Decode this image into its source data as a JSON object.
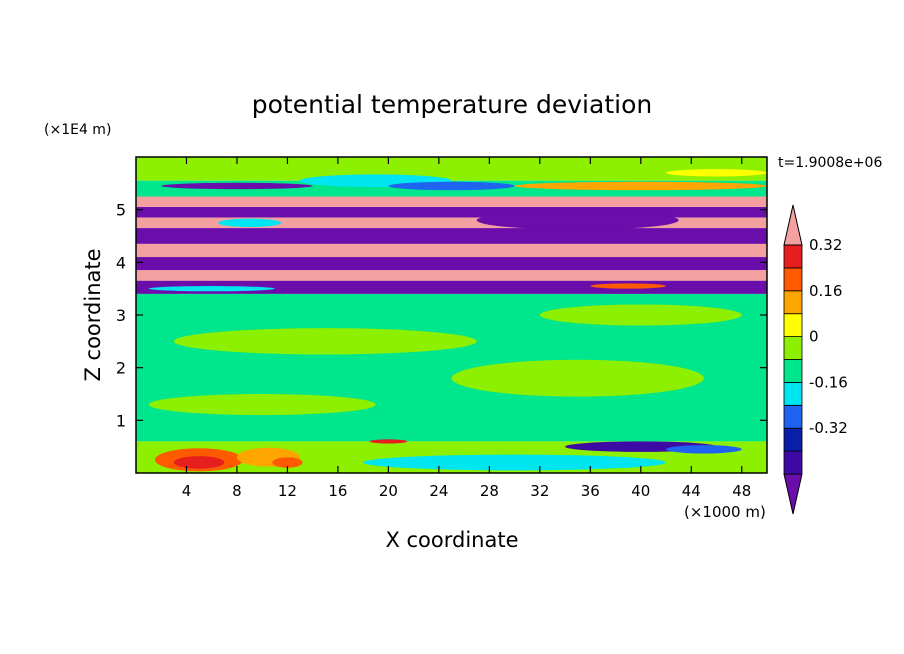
{
  "chart_data": {
    "type": "heatmap",
    "title": "potential temperature deviation",
    "xlabel": "X coordinate",
    "ylabel": "Z coordinate",
    "x_unit": "(×1000 m)",
    "y_unit": "(×1E4 m)",
    "time_label": "t=1.9008e+06",
    "xlim": [
      0,
      50
    ],
    "ylim": [
      0,
      6
    ],
    "x_ticks": [
      "4",
      "8",
      "12",
      "16",
      "20",
      "24",
      "28",
      "32",
      "36",
      "40",
      "44",
      "48"
    ],
    "y_ticks": [
      "1",
      "2",
      "3",
      "4",
      "5"
    ],
    "colorbar": {
      "colors": [
        "#6a0dab",
        "#3d0aa5",
        "#0a1ea8",
        "#1e64f0",
        "#00e6f0",
        "#00e68c",
        "#8cf000",
        "#ffff00",
        "#ffa500",
        "#ff5a00",
        "#e61e1e",
        "#f5a0a0"
      ],
      "tick_labels": [
        "-0.32",
        "-0.16",
        "0",
        "0.16",
        "0.32"
      ],
      "tick_values": [
        -0.32,
        -0.16,
        0,
        0.16,
        0.32
      ],
      "level_min": -0.48,
      "level_step": 0.08
    },
    "bands": [
      {
        "z0": 5.55,
        "z1": 6.0,
        "color": "#8cf000"
      },
      {
        "z0": 5.25,
        "z1": 5.55,
        "color": "#00e68c"
      },
      {
        "z0": 5.05,
        "z1": 5.25,
        "color": "#f5a0a0"
      },
      {
        "z0": 4.85,
        "z1": 5.05,
        "color": "#6a0dab"
      },
      {
        "z0": 4.65,
        "z1": 4.85,
        "color": "#f5a0a0"
      },
      {
        "z0": 4.35,
        "z1": 4.65,
        "color": "#6a0dab"
      },
      {
        "z0": 4.1,
        "z1": 4.35,
        "color": "#f5a0a0"
      },
      {
        "z0": 3.85,
        "z1": 4.1,
        "color": "#6a0dab"
      },
      {
        "z0": 3.65,
        "z1": 3.85,
        "color": "#f5a0a0"
      },
      {
        "z0": 3.4,
        "z1": 3.65,
        "color": "#6a0dab"
      },
      {
        "z0": 0.6,
        "z1": 3.4,
        "color": "#00e68c"
      },
      {
        "z0": 0.0,
        "z1": 0.6,
        "color": "#8cf000"
      }
    ],
    "blobs": [
      {
        "x": 19,
        "z": 5.55,
        "rx": 6,
        "rz": 0.12,
        "color": "#00e6f0"
      },
      {
        "x": 25,
        "z": 5.45,
        "rx": 5,
        "rz": 0.08,
        "color": "#1e64f0"
      },
      {
        "x": 8,
        "z": 5.45,
        "rx": 6,
        "rz": 0.06,
        "color": "#6a0dab"
      },
      {
        "x": 40,
        "z": 5.45,
        "rx": 10,
        "rz": 0.08,
        "color": "#ffa500"
      },
      {
        "x": 46,
        "z": 5.7,
        "rx": 4,
        "rz": 0.07,
        "color": "#ffff00"
      },
      {
        "x": 9,
        "z": 4.75,
        "rx": 2.5,
        "rz": 0.08,
        "color": "#00e6f0"
      },
      {
        "x": 35,
        "z": 4.8,
        "rx": 8,
        "rz": 0.18,
        "color": "#6a0dab"
      },
      {
        "x": 6,
        "z": 3.5,
        "rx": 5,
        "rz": 0.05,
        "color": "#00e6f0"
      },
      {
        "x": 39,
        "z": 3.55,
        "rx": 3,
        "rz": 0.05,
        "color": "#ff5a00"
      },
      {
        "x": 20,
        "z": 0.6,
        "rx": 1.5,
        "rz": 0.04,
        "color": "#e61e1e"
      },
      {
        "x": 40,
        "z": 0.5,
        "rx": 6,
        "rz": 0.1,
        "color": "#3d0aa5"
      },
      {
        "x": 45,
        "z": 0.45,
        "rx": 3,
        "rz": 0.08,
        "color": "#1e64f0"
      },
      {
        "x": 30,
        "z": 0.2,
        "rx": 12,
        "rz": 0.15,
        "color": "#00e6f0"
      },
      {
        "x": 5,
        "z": 0.25,
        "rx": 3.5,
        "rz": 0.22,
        "color": "#ff5a00"
      },
      {
        "x": 5,
        "z": 0.2,
        "rx": 2,
        "rz": 0.12,
        "color": "#e61e1e"
      },
      {
        "x": 10.5,
        "z": 0.3,
        "rx": 2.5,
        "rz": 0.18,
        "color": "#ffa500"
      },
      {
        "x": 12,
        "z": 0.2,
        "rx": 1.2,
        "rz": 0.1,
        "color": "#ff5a00"
      },
      {
        "x": 15,
        "z": 2.5,
        "rx": 12,
        "rz": 0.25,
        "color": "#8cf000"
      },
      {
        "x": 35,
        "z": 1.8,
        "rx": 10,
        "rz": 0.35,
        "color": "#8cf000"
      },
      {
        "x": 10,
        "z": 1.3,
        "rx": 9,
        "rz": 0.2,
        "color": "#8cf000"
      },
      {
        "x": 40,
        "z": 3.0,
        "rx": 8,
        "rz": 0.2,
        "color": "#8cf000"
      }
    ]
  }
}
